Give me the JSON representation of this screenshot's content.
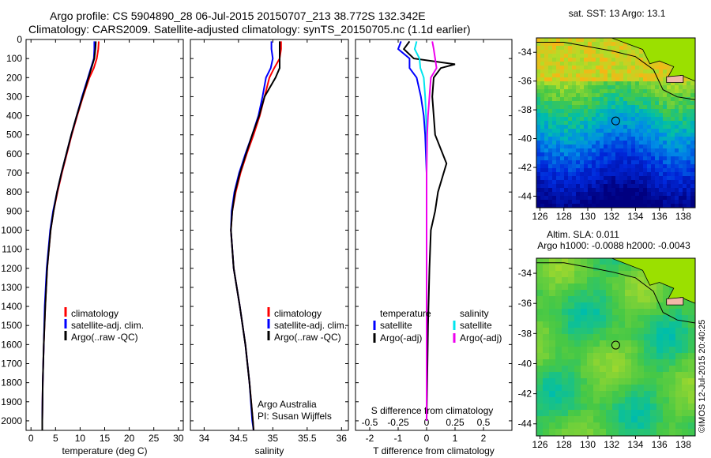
{
  "header": {
    "line1": "Argo profile: CS 5904890_28 06-Jul-2015 20150707_213 38.772S 132.342E",
    "line2": "Climatology: CARS2009. Satellite-adjusted climatology: synTS_20150705.nc (1.1d earlier)"
  },
  "sst_map": {
    "title": "sat. SST: 13 Argo: 13.1",
    "lon_ticks": [
      "126",
      "128",
      "130",
      "132",
      "134",
      "136",
      "138"
    ],
    "lat_ticks": [
      "-34",
      "-36",
      "-38",
      "-40",
      "-42",
      "-44"
    ]
  },
  "sla_map": {
    "title1": "Altim. SLA: 0.011",
    "title2": "Argo h1000: -0.0088 h2000: -0.0043",
    "lon_ticks": [
      "126",
      "128",
      "130",
      "132",
      "134",
      "136",
      "138"
    ],
    "lat_ticks": [
      "-34",
      "-36",
      "-38",
      "-40",
      "-42",
      "-44"
    ]
  },
  "credit": "©IMOS 12-Jul-2015 20:40:25",
  "colors": {
    "climatology": "#ff0000",
    "satellite": "#0000ff",
    "argo": "#000000",
    "sal_satellite": "#00e5ee",
    "sal_argo": "#ee00ee"
  },
  "chart_data": [
    {
      "type": "line",
      "xlabel": "temperature (deg C)",
      "ylabel": "",
      "xlim": [
        -1,
        31
      ],
      "ylim": [
        2050,
        0
      ],
      "xticks": [
        0,
        5,
        10,
        15,
        20,
        25,
        30
      ],
      "yticks": [
        0,
        100,
        200,
        300,
        400,
        500,
        600,
        700,
        800,
        900,
        1000,
        1100,
        1200,
        1300,
        1400,
        1500,
        1600,
        1700,
        1800,
        1900,
        2000
      ],
      "legend": [
        "climatology",
        "satellite-adj. clim.",
        "Argo(..raw -QC)"
      ],
      "series": [
        {
          "name": "climatology",
          "depth": [
            10,
            50,
            100,
            150,
            200,
            300,
            400,
            500,
            600,
            700,
            800,
            900,
            1000,
            1200,
            1400,
            1600,
            1800,
            2000,
            2050
          ],
          "values": [
            13.8,
            13.7,
            13.4,
            12.8,
            11.9,
            10.6,
            9.4,
            8.3,
            7.3,
            6.3,
            5.4,
            4.6,
            4.0,
            3.3,
            2.9,
            2.6,
            2.4,
            2.3,
            2.3
          ]
        },
        {
          "name": "satellite-adj. clim.",
          "depth": [
            10,
            50,
            100,
            150,
            200,
            300,
            400,
            500,
            600,
            700,
            800,
            900,
            1000,
            1200,
            1400,
            1600,
            1800,
            2000,
            2050
          ],
          "values": [
            12.9,
            12.9,
            12.8,
            12.2,
            11.6,
            10.4,
            9.3,
            8.2,
            7.2,
            6.2,
            5.3,
            4.5,
            3.9,
            3.2,
            2.8,
            2.6,
            2.4,
            2.3,
            2.3
          ]
        },
        {
          "name": "Argo(..raw -QC)",
          "depth": [
            10,
            50,
            100,
            150,
            200,
            300,
            400,
            500,
            600,
            700,
            800,
            900,
            1000,
            1200,
            1400,
            1600,
            1800,
            2000,
            2050
          ],
          "values": [
            13.2,
            13.1,
            12.9,
            12.3,
            11.7,
            10.5,
            9.3,
            8.2,
            7.2,
            6.2,
            5.3,
            4.6,
            4.0,
            3.3,
            2.9,
            2.6,
            2.4,
            2.3,
            2.3
          ]
        }
      ]
    },
    {
      "type": "line",
      "xlabel": "salinity",
      "ylabel": "",
      "xlim": [
        33.8,
        36.1
      ],
      "ylim": [
        2050,
        0
      ],
      "xticks": [
        34,
        34.5,
        35,
        35.5,
        36
      ],
      "legend": [
        "climatology",
        "satellite-adj. clim.",
        "Argo(..raw -QC)"
      ],
      "annotations": [
        "Argo Australia",
        "PI: Susan Wijffels"
      ],
      "series": [
        {
          "name": "climatology",
          "depth": [
            10,
            50,
            100,
            150,
            200,
            300,
            400,
            500,
            600,
            700,
            800,
            900,
            1000,
            1200,
            1400,
            1600,
            1800,
            2000,
            2050
          ],
          "values": [
            35.12,
            35.12,
            35.1,
            35.02,
            34.95,
            34.88,
            34.81,
            34.72,
            34.62,
            34.53,
            34.46,
            34.41,
            34.39,
            34.43,
            34.52,
            34.6,
            34.66,
            34.71,
            34.72
          ]
        },
        {
          "name": "satellite-adj. clim.",
          "depth": [
            10,
            50,
            100,
            150,
            200,
            300,
            400,
            500,
            600,
            700,
            800,
            900,
            1000,
            1200,
            1400,
            1600,
            1800,
            2000,
            2050
          ],
          "values": [
            34.98,
            34.98,
            35.0,
            34.97,
            34.9,
            34.85,
            34.79,
            34.7,
            34.6,
            34.51,
            34.44,
            34.4,
            34.39,
            34.43,
            34.52,
            34.6,
            34.66,
            34.7,
            34.72
          ]
        },
        {
          "name": "Argo(..raw -QC)",
          "depth": [
            10,
            50,
            100,
            150,
            200,
            300,
            400,
            500,
            600,
            700,
            800,
            900,
            1000,
            1200,
            1400,
            1600,
            1800,
            2000,
            2050
          ],
          "values": [
            35.1,
            35.1,
            35.1,
            35.1,
            35.04,
            34.88,
            34.8,
            34.7,
            34.61,
            34.52,
            34.45,
            34.41,
            34.39,
            34.43,
            34.52,
            34.6,
            34.66,
            34.71,
            34.72
          ]
        }
      ]
    },
    {
      "type": "line",
      "xlabel": "T difference from climatology",
      "xlabel_top": "S difference from climatology",
      "xlim": [
        -2.5,
        3.0
      ],
      "ylim": [
        2050,
        0
      ],
      "xticks": [
        -2,
        -1,
        0,
        1,
        2
      ],
      "xticks_top": [
        "-0.5",
        "-0.25",
        "0",
        "0.25",
        "0.5"
      ],
      "legend_groups": [
        {
          "title": "temperature",
          "items": [
            "satellite",
            "Argo(-adj)"
          ]
        },
        {
          "title": "salinity",
          "items": [
            "satellite",
            "Argo(-adj)"
          ]
        }
      ],
      "series": [
        {
          "name": "temperature satellite",
          "depth": [
            10,
            50,
            100,
            150,
            200,
            300,
            400,
            500,
            700,
            1000,
            1500,
            2000
          ],
          "values": [
            -0.9,
            -1.0,
            -0.6,
            -0.6,
            -0.35,
            -0.2,
            -0.1,
            -0.05,
            0.0,
            0.0,
            0.0,
            0.0
          ]
        },
        {
          "name": "temperature Argo(-adj)",
          "depth": [
            10,
            50,
            100,
            130,
            150,
            200,
            300,
            400,
            500,
            650,
            700,
            800,
            900,
            1000,
            1200,
            1500,
            2000
          ],
          "values": [
            -0.6,
            -0.8,
            -0.45,
            1.0,
            0.5,
            0.25,
            0.2,
            0.25,
            0.3,
            0.7,
            0.6,
            0.4,
            0.3,
            0.15,
            0.1,
            0.05,
            0.0
          ]
        },
        {
          "name": "salinity satellite",
          "depth": [
            10,
            50,
            100,
            150,
            200,
            300,
            400,
            500,
            700,
            1000,
            1500,
            2000
          ],
          "values": [
            -0.35,
            -0.42,
            -0.25,
            -0.22,
            -0.1,
            -0.05,
            -0.02,
            0.0,
            0.0,
            0.0,
            0.0,
            0.0
          ]
        },
        {
          "name": "salinity Argo(-adj)",
          "depth": [
            10,
            50,
            100,
            150,
            200,
            300,
            400,
            500,
            700,
            1000,
            1500,
            2000
          ],
          "values": [
            0.2,
            0.25,
            0.3,
            0.35,
            0.15,
            0.1,
            0.05,
            0.02,
            0.0,
            0.0,
            0.0,
            0.0
          ]
        }
      ]
    },
    {
      "type": "heatmap",
      "title": "sat. SST: 13 Argo: 13.1",
      "xlim": [
        125.7,
        139.0
      ],
      "ylim": [
        -44.8,
        -33.0
      ],
      "marker": {
        "lon": 132.342,
        "lat": -38.772
      }
    },
    {
      "type": "heatmap",
      "title": "Altim. SLA: 0.011",
      "xlim": [
        125.7,
        139.0
      ],
      "ylim": [
        -44.8,
        -33.0
      ],
      "marker": {
        "lon": 132.342,
        "lat": -38.772
      }
    }
  ]
}
